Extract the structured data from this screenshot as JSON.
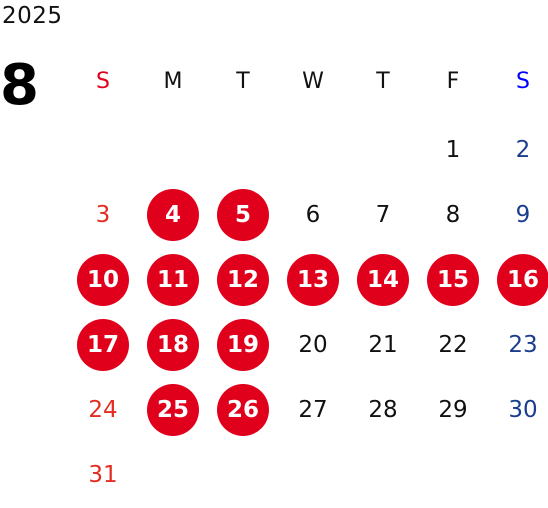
{
  "year": "2025",
  "month": "8",
  "colors": {
    "sun": "#e1001c",
    "sat": "#0000ff",
    "sat_date": "#1b3d8f",
    "sun_date": "#e42d22",
    "weekday": "#111111",
    "holiday_bg": "#e1001c",
    "holiday_text": "#ffffff"
  },
  "weekdays": [
    "S",
    "M",
    "T",
    "W",
    "T",
    "F",
    "S"
  ],
  "weeks": [
    [
      null,
      null,
      null,
      null,
      null,
      {
        "d": "1"
      },
      {
        "d": "2"
      }
    ],
    [
      {
        "d": "3"
      },
      {
        "d": "4",
        "h": true
      },
      {
        "d": "5",
        "h": true
      },
      {
        "d": "6"
      },
      {
        "d": "7"
      },
      {
        "d": "8"
      },
      {
        "d": "9"
      }
    ],
    [
      {
        "d": "10",
        "h": true
      },
      {
        "d": "11",
        "h": true
      },
      {
        "d": "12",
        "h": true
      },
      {
        "d": "13",
        "h": true
      },
      {
        "d": "14",
        "h": true
      },
      {
        "d": "15",
        "h": true
      },
      {
        "d": "16",
        "h": true
      }
    ],
    [
      {
        "d": "17",
        "h": true
      },
      {
        "d": "18",
        "h": true
      },
      {
        "d": "19",
        "h": true
      },
      {
        "d": "20"
      },
      {
        "d": "21"
      },
      {
        "d": "22"
      },
      {
        "d": "23"
      }
    ],
    [
      {
        "d": "24"
      },
      {
        "d": "25",
        "h": true
      },
      {
        "d": "26",
        "h": true
      },
      {
        "d": "27"
      },
      {
        "d": "28"
      },
      {
        "d": "29"
      },
      {
        "d": "30"
      }
    ],
    [
      {
        "d": "31"
      },
      null,
      null,
      null,
      null,
      null,
      null
    ]
  ]
}
